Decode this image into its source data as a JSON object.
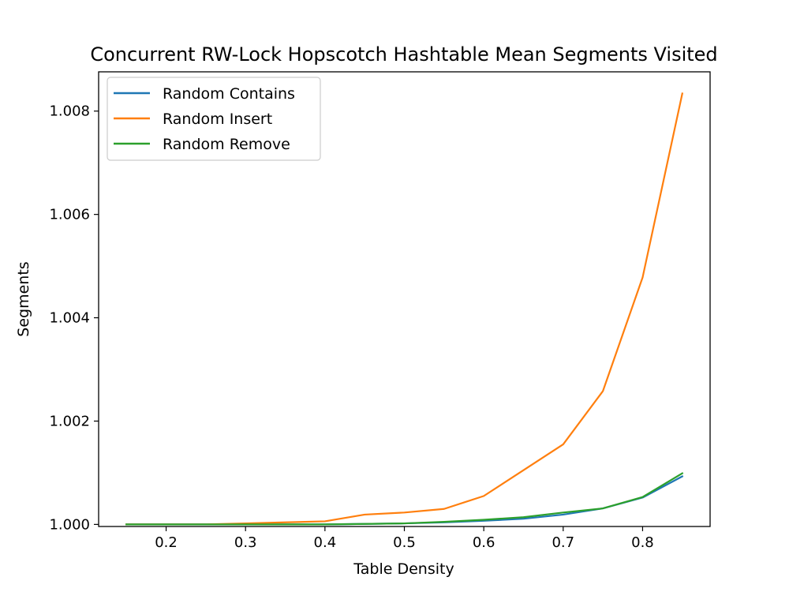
{
  "chart_data": {
    "type": "line",
    "title": "Concurrent RW-Lock Hopscotch Hashtable Mean Segments Visited",
    "xlabel": "Table Density",
    "ylabel": "Segments",
    "xlim": [
      0.115,
      0.885
    ],
    "ylim": [
      0.99996,
      1.00876
    ],
    "xticks": [
      0.2,
      0.3,
      0.4,
      0.5,
      0.6,
      0.7,
      0.8
    ],
    "xtick_labels": [
      "0.2",
      "0.3",
      "0.4",
      "0.5",
      "0.6",
      "0.7",
      "0.8"
    ],
    "yticks": [
      1.0,
      1.002,
      1.004,
      1.006,
      1.008
    ],
    "ytick_labels": [
      "1.000",
      "1.002",
      "1.004",
      "1.006",
      "1.008"
    ],
    "grid": false,
    "legend_position": "upper-left",
    "x": [
      0.15,
      0.2,
      0.25,
      0.3,
      0.35,
      0.4,
      0.45,
      0.5,
      0.55,
      0.6,
      0.65,
      0.7,
      0.75,
      0.8,
      0.85
    ],
    "series": [
      {
        "name": "Random Contains",
        "color": "#1f77b4",
        "values": [
          1.0,
          1.0,
          1.0,
          1.0,
          1.0,
          1.0,
          1.00001,
          1.00002,
          1.00004,
          1.00007,
          1.00011,
          1.00019,
          1.00031,
          1.00052,
          1.00093
        ]
      },
      {
        "name": "Random Insert",
        "color": "#ff7f0e",
        "values": [
          1.0,
          1.0,
          1.0,
          1.00002,
          1.00004,
          1.00006,
          1.00019,
          1.00023,
          1.0003,
          1.00055,
          1.00105,
          1.00155,
          1.00258,
          1.00478,
          1.00834
        ]
      },
      {
        "name": "Random Remove",
        "color": "#2ca02c",
        "values": [
          1.0,
          1.0,
          1.0,
          1.0,
          1.0,
          1.0,
          1.00001,
          1.00002,
          1.00005,
          1.00009,
          1.00014,
          1.00023,
          1.00031,
          1.00053,
          1.00099
        ]
      }
    ]
  }
}
